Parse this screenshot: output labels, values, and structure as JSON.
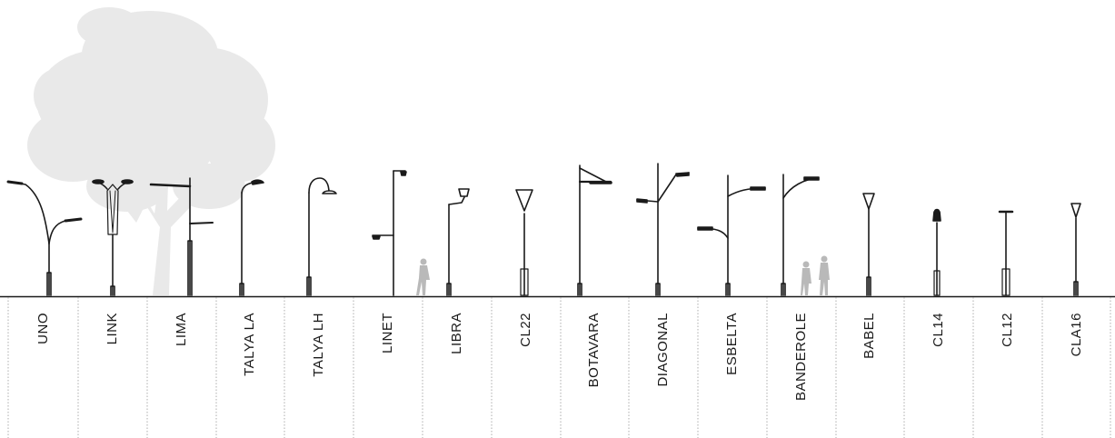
{
  "colors": {
    "ink": "#1a1a1a",
    "tree": "#e8e8e8",
    "figure": "#b9b9b9",
    "divider": "#9a9a9a",
    "background": "#ffffff"
  },
  "products": [
    {
      "id": "uno",
      "name": "UNO"
    },
    {
      "id": "link",
      "name": "LINK"
    },
    {
      "id": "lima",
      "name": "LIMA"
    },
    {
      "id": "talya-la",
      "name": "TALYA LA"
    },
    {
      "id": "talya-lh",
      "name": "TALYA LH"
    },
    {
      "id": "linet",
      "name": "LINET"
    },
    {
      "id": "libra",
      "name": "LIBRA"
    },
    {
      "id": "cl22",
      "name": "CL22"
    },
    {
      "id": "botavara",
      "name": "BOTAVARA"
    },
    {
      "id": "diagonal",
      "name": "DIAGONAL"
    },
    {
      "id": "esbelta",
      "name": "ESBELTA"
    },
    {
      "id": "banderole",
      "name": "BANDEROLE"
    },
    {
      "id": "babel",
      "name": "BABEL"
    },
    {
      "id": "cl14",
      "name": "CL14"
    },
    {
      "id": "cl12",
      "name": "CL12"
    },
    {
      "id": "cla16",
      "name": "CLA16"
    }
  ]
}
